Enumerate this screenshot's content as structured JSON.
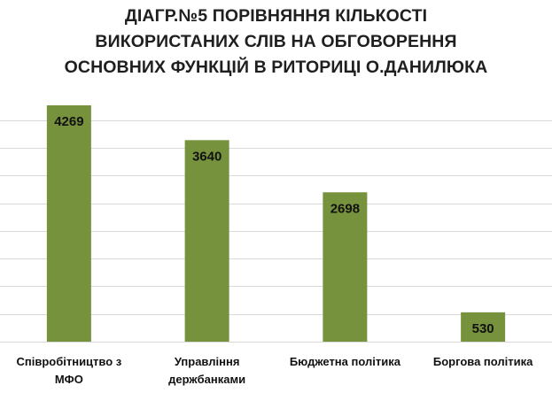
{
  "chart_data": {
    "type": "bar",
    "title_lines": [
      "ДІАГР.№5 ПОРІВНЯННЯ КІЛЬКОСТІ",
      "ВИКОРИСТАНИХ СЛІВ НА ОБГОВОРЕННЯ",
      "ОСНОВНИХ ФУНКЦІЙ В РИТОРИЦІ О.ДАНИЛЮКА"
    ],
    "categories": [
      [
        "Співробітництво з",
        "МФО"
      ],
      [
        "Управління",
        "держбанками"
      ],
      [
        "Бюджетна політика"
      ],
      [
        "Боргова політика"
      ]
    ],
    "values": [
      4269,
      3640,
      2698,
      530
    ],
    "ylim": [
      0,
      4269
    ],
    "grid": true,
    "bar_color": "#76923c",
    "grid_color": "#d9d9d9"
  }
}
